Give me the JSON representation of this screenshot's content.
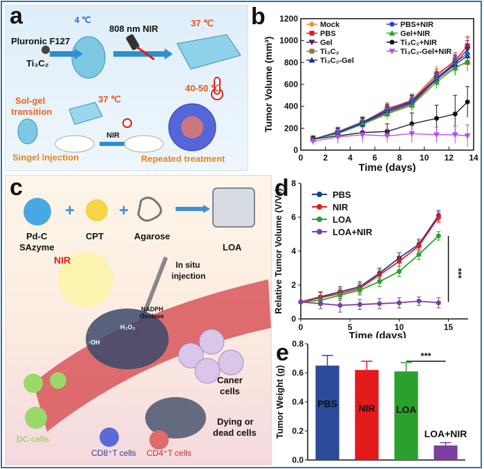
{
  "panels": {
    "a": {
      "label": "a",
      "texts": {
        "temp_4": "4 ℃",
        "laser": "808 nm NIR",
        "temp_37_top": "37 ℃",
        "pluronic": "Pluronic F127",
        "ti3c2": "Ti₃C₂",
        "solgel_1": "Sol-gel",
        "solgel_2": "transition",
        "temp_37_mid": "37 ℃",
        "temp_40_50": "40-50 ℃",
        "nir": "NIR",
        "single_injection": "Singel injection",
        "repeated": "Repeated treatment"
      }
    },
    "c": {
      "label": "c",
      "texts": {
        "pdc_1": "Pd-C",
        "pdc_2": "SAzyme",
        "cpt": "CPT",
        "agarose": "Agarose",
        "loa": "LOA",
        "nir": "NIR",
        "insitu_1": "In situ",
        "insitu_2": "injection",
        "nadph_1": "NADPH",
        "nadph_2": "Oxidase",
        "h2o2": "H₂O₂",
        "oh": "·OH",
        "caner_1": "Caner",
        "caner_2": "cells",
        "dying_1": "Dying or",
        "dying_2": "dead cells",
        "dc": "DC cells",
        "cd8": "CD8⁺T cells",
        "cd4": "CD4⁺T cells"
      }
    }
  },
  "chart_data": [
    {
      "panel_label": "b",
      "type": "line",
      "xlabel": "Time (days)",
      "ylabel": "Tumor Volume (mm³)",
      "xlim": [
        0,
        14
      ],
      "ylim": [
        0,
        1200
      ],
      "xticks": [
        0,
        2,
        4,
        6,
        8,
        10,
        12,
        14
      ],
      "yticks": [
        0,
        200,
        400,
        600,
        800,
        1000,
        1200
      ],
      "legend_position": "top",
      "x": [
        1,
        3,
        5,
        7,
        9,
        11,
        12.5,
        13.5
      ],
      "series": [
        {
          "name": "Mock",
          "color": "#f28c28",
          "marker": "diamond",
          "values": [
            100,
            170,
            260,
            370,
            460,
            700,
            800,
            960
          ],
          "err": [
            25,
            40,
            45,
            50,
            55,
            60,
            70,
            80
          ]
        },
        {
          "name": "PBS",
          "color": "#e31a1c",
          "marker": "square",
          "values": [
            100,
            160,
            250,
            380,
            450,
            680,
            820,
            950
          ],
          "err": [
            25,
            40,
            45,
            50,
            55,
            60,
            70,
            80
          ]
        },
        {
          "name": "Gel",
          "color": "#4b2167",
          "marker": "triangle-down",
          "values": [
            100,
            155,
            245,
            350,
            430,
            650,
            790,
            920
          ],
          "err": [
            25,
            40,
            45,
            50,
            55,
            60,
            70,
            80
          ]
        },
        {
          "name": "Ti₃C₂",
          "color": "#a0702a",
          "marker": "square",
          "values": [
            100,
            150,
            240,
            340,
            420,
            640,
            760,
            800
          ],
          "err": [
            25,
            40,
            45,
            50,
            55,
            60,
            70,
            80
          ]
        },
        {
          "name": "Ti₃C₂-Gel",
          "color": "#1f2a8a",
          "marker": "triangle",
          "values": [
            100,
            160,
            250,
            360,
            440,
            650,
            780,
            860
          ],
          "err": [
            25,
            40,
            45,
            50,
            55,
            60,
            70,
            80
          ]
        },
        {
          "name": "PBS+NIR",
          "color": "#1f3ff0",
          "marker": "circle",
          "values": [
            100,
            165,
            255,
            365,
            445,
            660,
            800,
            880
          ],
          "err": [
            25,
            40,
            45,
            50,
            55,
            60,
            70,
            80
          ]
        },
        {
          "name": "Gel+NIR",
          "color": "#2ca02c",
          "marker": "triangle",
          "values": [
            100,
            150,
            235,
            330,
            410,
            620,
            750,
            810
          ],
          "err": [
            25,
            40,
            45,
            50,
            55,
            60,
            70,
            80
          ]
        },
        {
          "name": "Ti₃C₂+NIR",
          "color": "#111111",
          "marker": "circle",
          "values": [
            100,
            130,
            160,
            170,
            240,
            290,
            330,
            440
          ],
          "err": [
            30,
            50,
            60,
            70,
            100,
            120,
            170,
            140
          ]
        },
        {
          "name": "Ti₃C₂-Gel+NIR",
          "color": "#b84ee6",
          "marker": "triangle-down",
          "values": [
            80,
            120,
            140,
            130,
            150,
            140,
            140,
            130
          ],
          "err": [
            30,
            60,
            70,
            60,
            80,
            70,
            80,
            100
          ]
        }
      ]
    },
    {
      "panel_label": "d",
      "type": "line",
      "xlabel": "Time (days)",
      "ylabel": "Relative Tumor Volume (V/V₀)",
      "xlim": [
        0,
        17
      ],
      "ylim": [
        0,
        8
      ],
      "xticks": [
        0,
        5,
        10,
        15
      ],
      "yticks": [
        0,
        2,
        4,
        6,
        8
      ],
      "legend_position": "top-left",
      "significance": "***",
      "x": [
        0,
        2,
        4,
        6,
        8,
        10,
        12,
        14
      ],
      "series": [
        {
          "name": "PBS",
          "color": "#1f3f8a",
          "values": [
            1.0,
            1.3,
            1.6,
            1.9,
            2.7,
            3.6,
            4.4,
            6.1
          ],
          "err": [
            0.1,
            0.3,
            0.3,
            0.3,
            0.3,
            0.3,
            0.3,
            0.3
          ]
        },
        {
          "name": "NIR",
          "color": "#e31a1c",
          "values": [
            1.0,
            1.25,
            1.5,
            1.8,
            2.6,
            3.4,
            4.3,
            6.0
          ],
          "err": [
            0.1,
            0.3,
            0.3,
            0.3,
            0.3,
            0.3,
            0.3,
            0.3
          ]
        },
        {
          "name": "LOA",
          "color": "#2ca02c",
          "values": [
            1.0,
            1.1,
            1.4,
            1.7,
            2.2,
            2.8,
            3.8,
            4.9
          ],
          "err": [
            0.1,
            0.3,
            0.3,
            0.3,
            0.3,
            0.3,
            0.3,
            0.25
          ]
        },
        {
          "name": "LOA+NIR",
          "color": "#7b3fa0",
          "values": [
            1.0,
            0.9,
            0.8,
            0.85,
            0.9,
            0.95,
            1.05,
            0.95
          ],
          "err": [
            0.1,
            0.3,
            0.4,
            0.3,
            0.3,
            0.3,
            0.25,
            0.3
          ]
        }
      ]
    },
    {
      "panel_label": "e",
      "type": "bar",
      "ylabel": "Tumor Weight (g)",
      "ylim": [
        0,
        0.8
      ],
      "yticks": [
        0.0,
        0.2,
        0.4,
        0.6,
        0.8
      ],
      "significance": "***",
      "categories": [
        "PBS",
        "NIR",
        "LOA",
        "LOA+NIR"
      ],
      "values": [
        0.65,
        0.62,
        0.61,
        0.1
      ],
      "err": [
        0.07,
        0.06,
        0.06,
        0.02
      ],
      "colors": [
        "#2b4a9a",
        "#e31a1c",
        "#2ca02c",
        "#7b3fa0"
      ]
    }
  ]
}
